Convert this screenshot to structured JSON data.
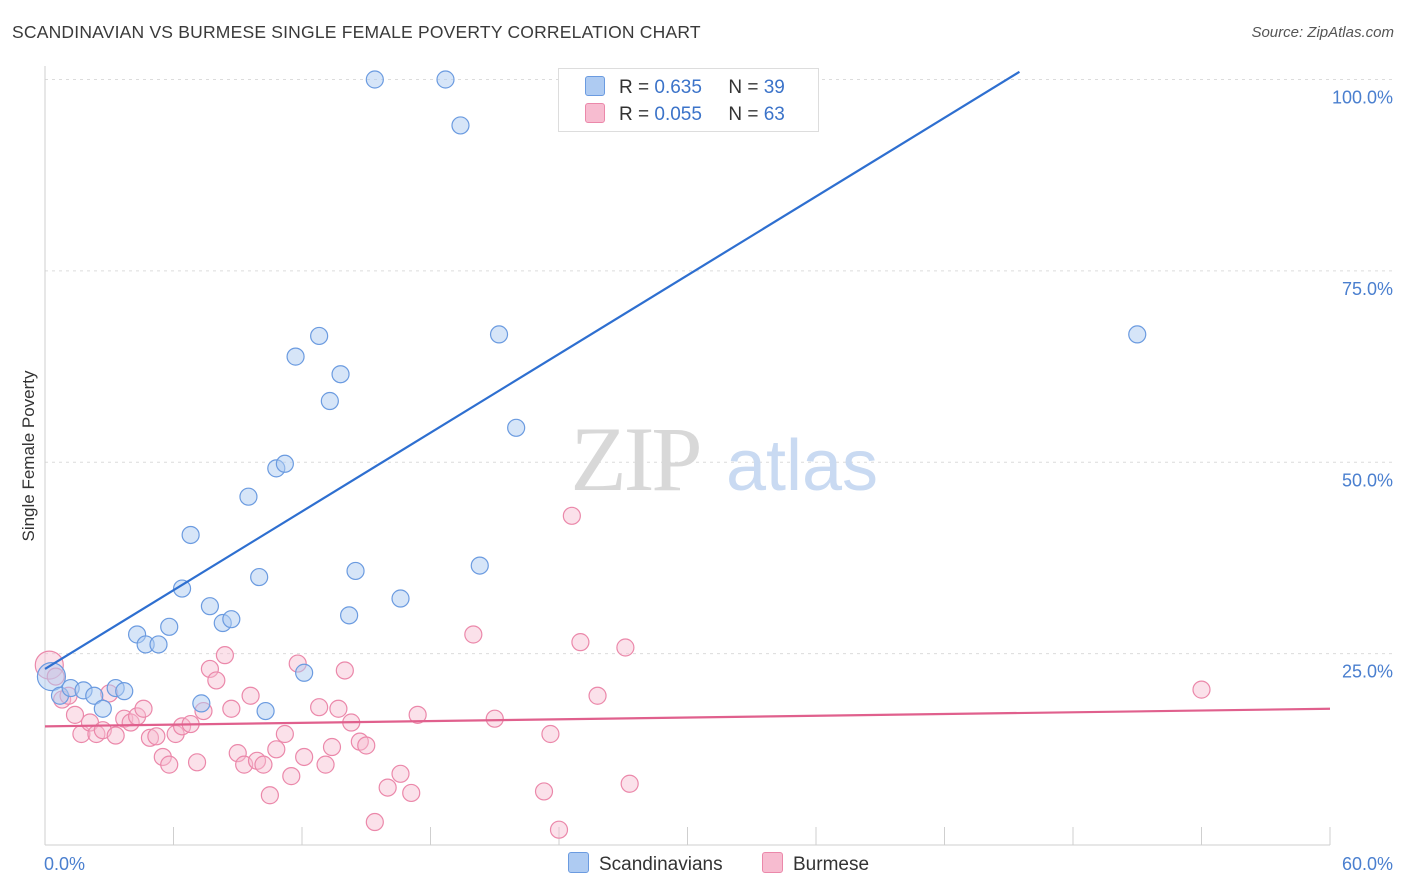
{
  "title": "SCANDINAVIAN VS BURMESE SINGLE FEMALE POVERTY CORRELATION CHART",
  "source": "Source: ZipAtlas.com",
  "watermark": {
    "zip": "ZIP",
    "atlas": "atlas"
  },
  "colors": {
    "scandinavians_fill": "#aecbf2",
    "scandinavians_stroke": "#6b9be0",
    "scandinavians_line": "#2e6fd0",
    "burmese_fill": "#f7bcd0",
    "burmese_stroke": "#eb88aa",
    "burmese_line": "#e0608d",
    "grid": "#dcdcdc",
    "tick_label": "#4a7fcf"
  },
  "legend": {
    "rows": [
      {
        "r_label": "R =",
        "r_value": "0.635",
        "n_label": "N =",
        "n_value": "39"
      },
      {
        "r_label": "R =",
        "r_value": "0.055",
        "n_label": "N =",
        "n_value": "63"
      }
    ]
  },
  "bottom_legend": {
    "scandinavians": "Scandinavians",
    "burmese": "Burmese"
  },
  "chart_data": {
    "type": "scatter",
    "title": "SCANDINAVIAN VS BURMESE SINGLE FEMALE POVERTY CORRELATION CHART",
    "xlabel": "",
    "ylabel": "Single Female Poverty",
    "xlim": [
      0,
      60
    ],
    "ylim": [
      0,
      100
    ],
    "x_tick_labels": {
      "left": "0.0%",
      "right": "60.0%"
    },
    "y_ticks": [
      {
        "value": 25,
        "label": "25.0%"
      },
      {
        "value": 50,
        "label": "50.0%"
      },
      {
        "value": 75,
        "label": "75.0%"
      },
      {
        "value": 100,
        "label": "100.0%"
      }
    ],
    "grid": true,
    "legend_position": "top-center",
    "series": [
      {
        "name": "Scandinavians",
        "r": 0.635,
        "n": 39,
        "trend": {
          "x": [
            0.0,
            45.5
          ],
          "y": [
            23.0,
            101.0
          ]
        },
        "points": [
          {
            "x": 0.3,
            "y": 22.0
          },
          {
            "x": 0.7,
            "y": 19.5
          },
          {
            "x": 1.2,
            "y": 20.5
          },
          {
            "x": 1.8,
            "y": 20.2
          },
          {
            "x": 2.3,
            "y": 19.5
          },
          {
            "x": 2.7,
            "y": 17.8
          },
          {
            "x": 3.3,
            "y": 20.5
          },
          {
            "x": 3.7,
            "y": 20.1
          },
          {
            "x": 4.3,
            "y": 27.5
          },
          {
            "x": 4.7,
            "y": 26.2
          },
          {
            "x": 5.3,
            "y": 26.2
          },
          {
            "x": 5.8,
            "y": 28.5
          },
          {
            "x": 6.4,
            "y": 33.5
          },
          {
            "x": 6.8,
            "y": 40.5
          },
          {
            "x": 7.3,
            "y": 18.5
          },
          {
            "x": 7.7,
            "y": 31.2
          },
          {
            "x": 8.3,
            "y": 29.0
          },
          {
            "x": 8.7,
            "y": 29.5
          },
          {
            "x": 9.5,
            "y": 45.5
          },
          {
            "x": 10.0,
            "y": 35.0
          },
          {
            "x": 10.3,
            "y": 17.5
          },
          {
            "x": 10.8,
            "y": 49.2
          },
          {
            "x": 11.2,
            "y": 49.8
          },
          {
            "x": 11.7,
            "y": 63.8
          },
          {
            "x": 12.1,
            "y": 22.5
          },
          {
            "x": 12.8,
            "y": 66.5
          },
          {
            "x": 13.3,
            "y": 58.0
          },
          {
            "x": 13.8,
            "y": 61.5
          },
          {
            "x": 14.2,
            "y": 30.0
          },
          {
            "x": 14.5,
            "y": 35.8
          },
          {
            "x": 15.4,
            "y": 100.0
          },
          {
            "x": 16.6,
            "y": 32.2
          },
          {
            "x": 18.7,
            "y": 100.0
          },
          {
            "x": 19.4,
            "y": 94.0
          },
          {
            "x": 20.3,
            "y": 36.5
          },
          {
            "x": 21.2,
            "y": 66.7
          },
          {
            "x": 22.0,
            "y": 54.5
          },
          {
            "x": 25.5,
            "y": 100.0
          },
          {
            "x": 51.0,
            "y": 66.7
          }
        ]
      },
      {
        "name": "Burmese",
        "r": 0.055,
        "n": 63,
        "trend": {
          "x": [
            0.0,
            60.0
          ],
          "y": [
            15.5,
            17.8
          ]
        },
        "points": [
          {
            "x": 0.2,
            "y": 23.5
          },
          {
            "x": 0.5,
            "y": 22.0
          },
          {
            "x": 0.8,
            "y": 19.0
          },
          {
            "x": 1.1,
            "y": 19.5
          },
          {
            "x": 1.4,
            "y": 17.0
          },
          {
            "x": 1.7,
            "y": 14.5
          },
          {
            "x": 2.1,
            "y": 16.0
          },
          {
            "x": 2.4,
            "y": 14.5
          },
          {
            "x": 2.7,
            "y": 15.0
          },
          {
            "x": 3.0,
            "y": 19.8
          },
          {
            "x": 3.3,
            "y": 14.3
          },
          {
            "x": 3.7,
            "y": 16.5
          },
          {
            "x": 4.0,
            "y": 16.0
          },
          {
            "x": 4.3,
            "y": 16.8
          },
          {
            "x": 4.6,
            "y": 17.8
          },
          {
            "x": 4.9,
            "y": 14.0
          },
          {
            "x": 5.2,
            "y": 14.2
          },
          {
            "x": 5.5,
            "y": 11.5
          },
          {
            "x": 5.8,
            "y": 10.5
          },
          {
            "x": 6.1,
            "y": 14.5
          },
          {
            "x": 6.4,
            "y": 15.5
          },
          {
            "x": 6.8,
            "y": 15.8
          },
          {
            "x": 7.1,
            "y": 10.8
          },
          {
            "x": 7.4,
            "y": 17.5
          },
          {
            "x": 7.7,
            "y": 23.0
          },
          {
            "x": 8.0,
            "y": 21.5
          },
          {
            "x": 8.4,
            "y": 24.8
          },
          {
            "x": 8.7,
            "y": 17.8
          },
          {
            "x": 9.0,
            "y": 12.0
          },
          {
            "x": 9.3,
            "y": 10.5
          },
          {
            "x": 9.6,
            "y": 19.5
          },
          {
            "x": 9.9,
            "y": 11.0
          },
          {
            "x": 10.2,
            "y": 10.5
          },
          {
            "x": 10.5,
            "y": 6.5
          },
          {
            "x": 10.8,
            "y": 12.5
          },
          {
            "x": 11.2,
            "y": 14.5
          },
          {
            "x": 11.5,
            "y": 9.0
          },
          {
            "x": 11.8,
            "y": 23.7
          },
          {
            "x": 12.1,
            "y": 11.5
          },
          {
            "x": 12.8,
            "y": 18.0
          },
          {
            "x": 13.1,
            "y": 10.5
          },
          {
            "x": 13.4,
            "y": 12.8
          },
          {
            "x": 13.7,
            "y": 17.8
          },
          {
            "x": 14.0,
            "y": 22.8
          },
          {
            "x": 14.3,
            "y": 16.0
          },
          {
            "x": 14.7,
            "y": 13.5
          },
          {
            "x": 15.0,
            "y": 13.0
          },
          {
            "x": 15.4,
            "y": 3.0
          },
          {
            "x": 16.0,
            "y": 7.5
          },
          {
            "x": 16.6,
            "y": 9.3
          },
          {
            "x": 17.1,
            "y": 6.8
          },
          {
            "x": 17.4,
            "y": 17.0
          },
          {
            "x": 20.0,
            "y": 27.5
          },
          {
            "x": 21.0,
            "y": 16.5
          },
          {
            "x": 23.3,
            "y": 7.0
          },
          {
            "x": 23.6,
            "y": 14.5
          },
          {
            "x": 24.0,
            "y": 2.0
          },
          {
            "x": 24.6,
            "y": 43.0
          },
          {
            "x": 25.0,
            "y": 26.5
          },
          {
            "x": 25.8,
            "y": 19.5
          },
          {
            "x": 27.1,
            "y": 25.8
          },
          {
            "x": 27.3,
            "y": 8.0
          },
          {
            "x": 54.0,
            "y": 20.3
          }
        ]
      }
    ]
  }
}
